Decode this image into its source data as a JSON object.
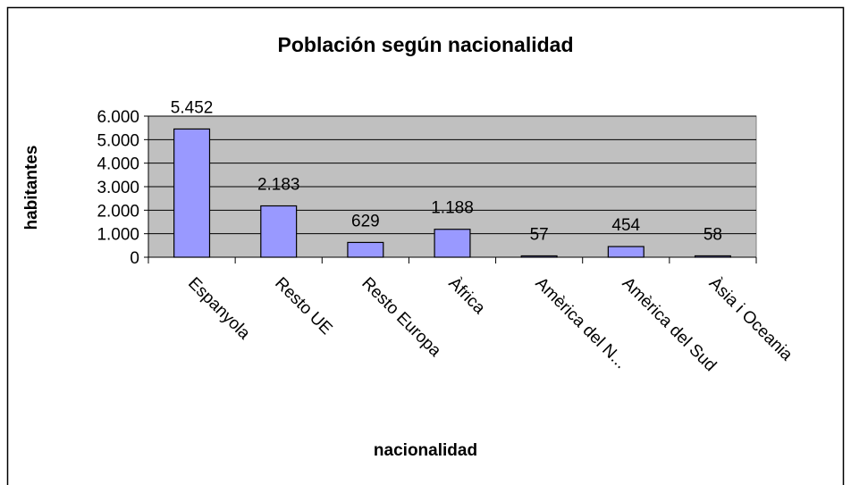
{
  "chart_data": {
    "type": "bar",
    "title": "Población según nacionalidad",
    "x_label": "nacionalidad",
    "y_label": "habitantes",
    "categories": [
      "Espanyola",
      "Resto UE",
      "Resto Europa",
      "Àfrica",
      "Amèrica del N...",
      "Amèrica del Sud",
      "Àsia i Oceania"
    ],
    "values": [
      5452,
      2183,
      629,
      1188,
      57,
      454,
      58
    ],
    "value_labels": [
      "5.452",
      "2.183",
      "629",
      "1.188",
      "57",
      "454",
      "58"
    ],
    "color": "#9999ff",
    "ylim": [
      0,
      6000
    ],
    "yticks": [
      0,
      {
        "value": 1000,
        "label": "1.000"
      },
      {
        "value": 2000,
        "label": "2.000"
      },
      {
        "value": 3000,
        "label": "3.000"
      },
      {
        "value": 4000,
        "label": "4.000"
      },
      {
        "value": 5000,
        "label": "5.000"
      },
      {
        "value": 6000,
        "label": "6.000"
      }
    ],
    "grid": true
  }
}
